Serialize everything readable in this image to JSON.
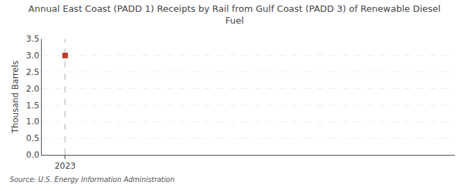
{
  "chart_data": {
    "type": "scatter",
    "title": "Annual East Coast (PADD 1) Receipts by Rail from Gulf Coast (PADD 3) of Renewable Diesel\nFuel",
    "ylabel": "Thousand Barrels",
    "source": "Source: U.S. Energy Information Administration",
    "x": [
      2023
    ],
    "values": [
      3.0
    ],
    "color": "#c0392b",
    "marker": "square",
    "xlim": [
      2022.7,
      2028.0
    ],
    "xticks": [
      2023
    ],
    "ylim": [
      0.0,
      3.5
    ],
    "yticks": [
      {
        "value": 0.0,
        "label": "0.0"
      },
      0.5,
      {
        "value": 1.0,
        "label": "1.0"
      },
      1.5,
      {
        "value": 2.0,
        "label": "2.0"
      },
      2.5,
      {
        "value": 3.0,
        "label": "3.0"
      },
      3.5
    ],
    "grid": true
  }
}
